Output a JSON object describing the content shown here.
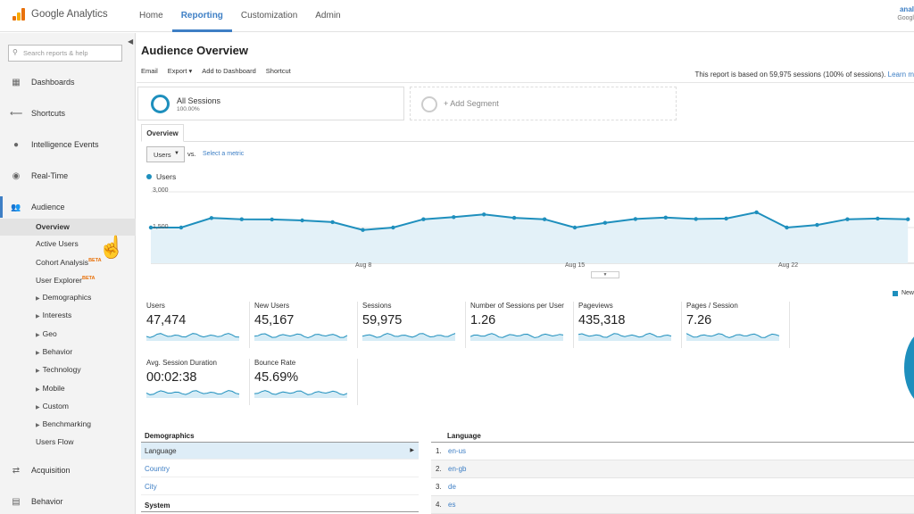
{
  "app": {
    "logo_text": "Google Analytics",
    "account_name": "anal",
    "account_sub": "Googl"
  },
  "topnav": [
    {
      "label": "Home",
      "active": false
    },
    {
      "label": "Reporting",
      "active": true
    },
    {
      "label": "Customization",
      "active": false
    },
    {
      "label": "Admin",
      "active": false
    }
  ],
  "sidebar": {
    "search_placeholder": "Search reports & help",
    "sections": [
      {
        "label": "Dashboards",
        "icon": "dashboard-grid-icon",
        "glyph": "▦"
      },
      {
        "label": "Shortcuts",
        "icon": "shortcut-arrow-icon",
        "glyph": "⟵"
      },
      {
        "label": "Intelligence Events",
        "icon": "lightbulb-icon",
        "glyph": "●"
      },
      {
        "label": "Real-Time",
        "icon": "clock-icon",
        "glyph": "◉"
      },
      {
        "label": "Audience",
        "icon": "people-icon",
        "glyph": "👥"
      }
    ],
    "audience_items": [
      {
        "label": "Overview",
        "selected": true,
        "expandable": false,
        "beta": false
      },
      {
        "label": "Active Users",
        "selected": false,
        "expandable": false,
        "beta": false
      },
      {
        "label": "Cohort Analysis",
        "selected": false,
        "expandable": false,
        "beta": true
      },
      {
        "label": "User Explorer",
        "selected": false,
        "expandable": false,
        "beta": true
      },
      {
        "label": "Demographics",
        "selected": false,
        "expandable": true,
        "beta": false
      },
      {
        "label": "Interests",
        "selected": false,
        "expandable": true,
        "beta": false
      },
      {
        "label": "Geo",
        "selected": false,
        "expandable": true,
        "beta": false
      },
      {
        "label": "Behavior",
        "selected": false,
        "expandable": true,
        "beta": false
      },
      {
        "label": "Technology",
        "selected": false,
        "expandable": true,
        "beta": false
      },
      {
        "label": "Mobile",
        "selected": false,
        "expandable": true,
        "beta": false
      },
      {
        "label": "Custom",
        "selected": false,
        "expandable": true,
        "beta": false
      },
      {
        "label": "Benchmarking",
        "selected": false,
        "expandable": true,
        "beta": false
      },
      {
        "label": "Users Flow",
        "selected": false,
        "expandable": false,
        "beta": false
      }
    ],
    "beta_label": "BETA",
    "bottom_sections": [
      {
        "label": "Acquisition",
        "icon": "acquisition-arrows-icon",
        "glyph": "⇄"
      },
      {
        "label": "Behavior",
        "icon": "behavior-page-icon",
        "glyph": "▤"
      }
    ]
  },
  "report": {
    "title": "Audience Overview",
    "toolbar": [
      "Email",
      "Export ▾",
      "Add to Dashboard",
      "Shortcut"
    ],
    "note_prefix": "This report is based on 59,975 sessions (100% of sessions).",
    "note_link": "Learn m",
    "segments": {
      "name": "All Sessions",
      "pct": "100.00%",
      "add_label": "+ Add Segment"
    },
    "tab": "Overview",
    "metric_select": "Users",
    "vs_label": "vs.",
    "select_metric_label": "Select a metric",
    "series_color": "#1e8fbd"
  },
  "chart_data": {
    "type": "area",
    "series": [
      {
        "name": "Users",
        "values": [
          1500,
          1500,
          1900,
          1850,
          1840,
          1800,
          1730,
          1400,
          1500,
          1850,
          1940,
          2050,
          1910,
          1850,
          1500,
          1700,
          1860,
          1920,
          1860,
          1880,
          2140,
          1500,
          1610,
          1850,
          1880,
          1850
        ]
      }
    ],
    "x_ticks": [
      "Aug 8",
      "Aug 15",
      "Aug 22"
    ],
    "y_ticks": [
      "3,000",
      "1,500"
    ],
    "ylim": [
      0,
      3000
    ]
  },
  "metrics": [
    {
      "label": "Users",
      "value": "47,474"
    },
    {
      "label": "New Users",
      "value": "45,167"
    },
    {
      "label": "Sessions",
      "value": "59,975"
    },
    {
      "label": "Number of Sessions per User",
      "value": "1.26"
    },
    {
      "label": "Pageviews",
      "value": "435,318"
    },
    {
      "label": "Pages / Session",
      "value": "7.26"
    },
    {
      "label": "Avg. Session Duration",
      "value": "00:02:38"
    },
    {
      "label": "Bounce Rate",
      "value": "45.69%"
    }
  ],
  "pie_legend": "New",
  "demographics": {
    "header": "Demographics",
    "rows": [
      "Language",
      "Country",
      "City"
    ],
    "system_header": "System"
  },
  "language": {
    "header": "Language",
    "rows": [
      {
        "num": "1.",
        "name": "en-us"
      },
      {
        "num": "2.",
        "name": "en-gb"
      },
      {
        "num": "3.",
        "name": "de"
      },
      {
        "num": "4.",
        "name": "es"
      }
    ]
  }
}
